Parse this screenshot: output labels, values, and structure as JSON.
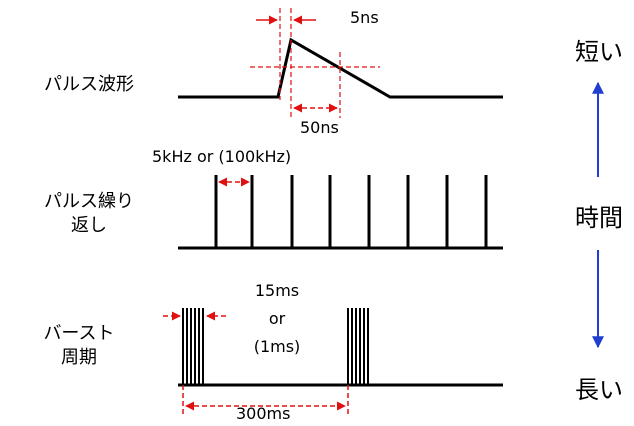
{
  "rows": {
    "pulse_waveform": {
      "label": "パルス波形"
    },
    "pulse_repetition": {
      "label_line1": "パルス繰り",
      "label_line2": "返し"
    },
    "burst_period": {
      "label_line1": "バースト",
      "label_line2": "周期"
    }
  },
  "annotations": {
    "rise_time": "5ns",
    "fall_time": "50ns",
    "repetition_rate": "5kHz or (100kHz)",
    "burst_line1": "15ms",
    "burst_line2": "or",
    "burst_line3": "(1ms)",
    "burst_interval": "300ms"
  },
  "time_scale": {
    "top": "短い",
    "middle": "時間",
    "bottom": "長い"
  },
  "colors": {
    "waveform": "#000000",
    "dimension": "#e01010",
    "scale_arrow": "#1f3fd0"
  }
}
